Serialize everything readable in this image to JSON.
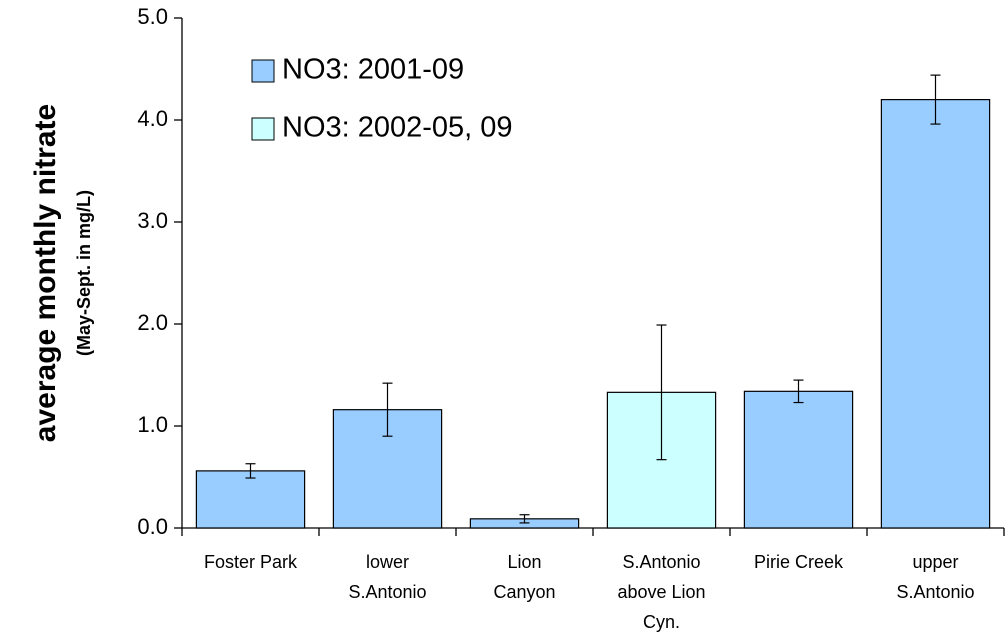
{
  "chart_data": {
    "type": "bar",
    "ylabel": [
      "average monthly nitrate",
      "(May-Sept. in mg/L)"
    ],
    "categories": [
      [
        "Foster Park"
      ],
      [
        "lower",
        "S.Antonio"
      ],
      [
        "Lion",
        "Canyon"
      ],
      [
        "S.Antonio",
        "above Lion",
        "Cyn."
      ],
      [
        "Pirie Creek"
      ],
      [
        "upper",
        "S.Antonio"
      ]
    ],
    "series": [
      {
        "name": "NO3: 2001-09",
        "color": "#99ccff",
        "values": [
          0.56,
          1.16,
          0.09,
          null,
          1.34,
          4.2
        ],
        "errors": [
          0.07,
          0.26,
          0.04,
          null,
          0.11,
          0.24
        ]
      },
      {
        "name": "NO3: 2002-05, 09",
        "color": "#ccffff",
        "values": [
          null,
          null,
          null,
          1.33,
          null,
          null
        ],
        "errors": [
          null,
          null,
          null,
          0.66,
          null,
          null
        ]
      }
    ],
    "ylim": [
      0,
      5
    ],
    "yticks": [
      {
        "value": 0,
        "label": "0.0"
      },
      {
        "value": 1,
        "label": "1.0"
      },
      {
        "value": 2,
        "label": "2.0"
      },
      {
        "value": 3,
        "label": "3.0"
      },
      {
        "value": 4,
        "label": "4.0"
      },
      {
        "value": 5,
        "label": "5.0"
      }
    ],
    "legend": "upper left"
  }
}
